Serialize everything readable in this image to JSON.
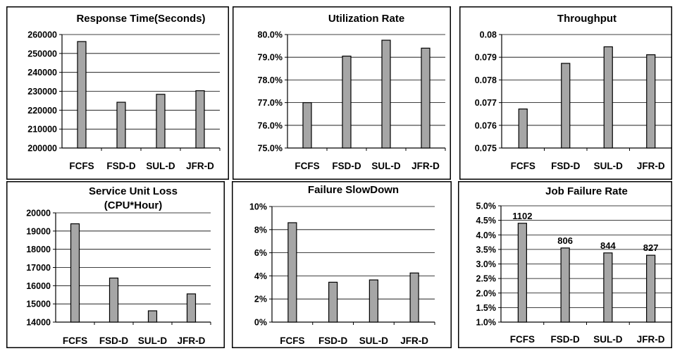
{
  "chart_data": [
    {
      "type": "bar",
      "title": "Response Time(Seconds)",
      "categories": [
        "FCFS",
        "FSD-D",
        "SUL-D",
        "JFR-D"
      ],
      "values": [
        256300,
        224200,
        228400,
        230300
      ],
      "ylim": [
        200000,
        260000
      ],
      "yticks": [
        200000,
        210000,
        220000,
        230000,
        240000,
        250000,
        260000
      ],
      "ytick_labels": [
        "200000",
        "210000",
        "220000",
        "230000",
        "240000",
        "250000",
        "260000"
      ],
      "grid": true
    },
    {
      "type": "bar",
      "title": "Utilization Rate",
      "categories": [
        "FCFS",
        "FSD-D",
        "SUL-D",
        "JFR-D"
      ],
      "values": [
        77.0,
        79.05,
        79.75,
        79.4
      ],
      "ylim": [
        75,
        80
      ],
      "yticks": [
        75,
        76,
        77,
        78,
        79,
        80
      ],
      "ytick_labels": [
        "75.0%",
        "76.0%",
        "77.0%",
        "78.0%",
        "79.0%",
        "80.0%"
      ],
      "grid": true
    },
    {
      "type": "bar",
      "title": "Throughput",
      "categories": [
        "FCFS",
        "FSD-D",
        "SUL-D",
        "JFR-D"
      ],
      "values": [
        0.07672,
        0.07873,
        0.07946,
        0.07911
      ],
      "ylim": [
        0.075,
        0.08
      ],
      "yticks": [
        0.075,
        0.076,
        0.077,
        0.078,
        0.079,
        0.08
      ],
      "ytick_labels": [
        "0.075",
        "0.076",
        "0.077",
        "0.078",
        "0.079",
        "0.08"
      ],
      "grid": true
    },
    {
      "type": "bar",
      "title": "Service Unit Loss",
      "subtitle": "(CPU*Hour)",
      "categories": [
        "FCFS",
        "FSD-D",
        "SUL-D",
        "JFR-D"
      ],
      "values": [
        19400,
        16420,
        14620,
        15550
      ],
      "ylim": [
        14000,
        20000
      ],
      "yticks": [
        14000,
        15000,
        16000,
        17000,
        18000,
        19000,
        20000
      ],
      "ytick_labels": [
        "14000",
        "15000",
        "16000",
        "17000",
        "18000",
        "19000",
        "20000"
      ],
      "grid": true
    },
    {
      "type": "bar",
      "title": "Failure SlowDown",
      "categories": [
        "FCFS",
        "FSD-D",
        "SUL-D",
        "JFR-D"
      ],
      "values": [
        8.6,
        3.45,
        3.65,
        4.25
      ],
      "ylim": [
        0,
        10
      ],
      "yticks": [
        0,
        2,
        4,
        6,
        8,
        10
      ],
      "ytick_labels": [
        "0%",
        "2%",
        "4%",
        "6%",
        "8%",
        "10%"
      ],
      "grid": true
    },
    {
      "type": "bar",
      "title": "Job Failure Rate",
      "categories": [
        "FCFS",
        "FSD-D",
        "SUL-D",
        "JFR-D"
      ],
      "values": [
        4.4,
        3.55,
        3.38,
        3.3
      ],
      "data_labels": [
        "1102",
        "806",
        "844",
        "827"
      ],
      "ylim": [
        1,
        5
      ],
      "yticks": [
        1,
        1.5,
        2,
        2.5,
        3,
        3.5,
        4,
        4.5,
        5
      ],
      "ytick_labels": [
        "1.0%",
        "1.5%",
        "2.0%",
        "2.5%",
        "3.0%",
        "3.5%",
        "4.0%",
        "4.5%",
        "5.0%"
      ],
      "grid": true
    }
  ]
}
